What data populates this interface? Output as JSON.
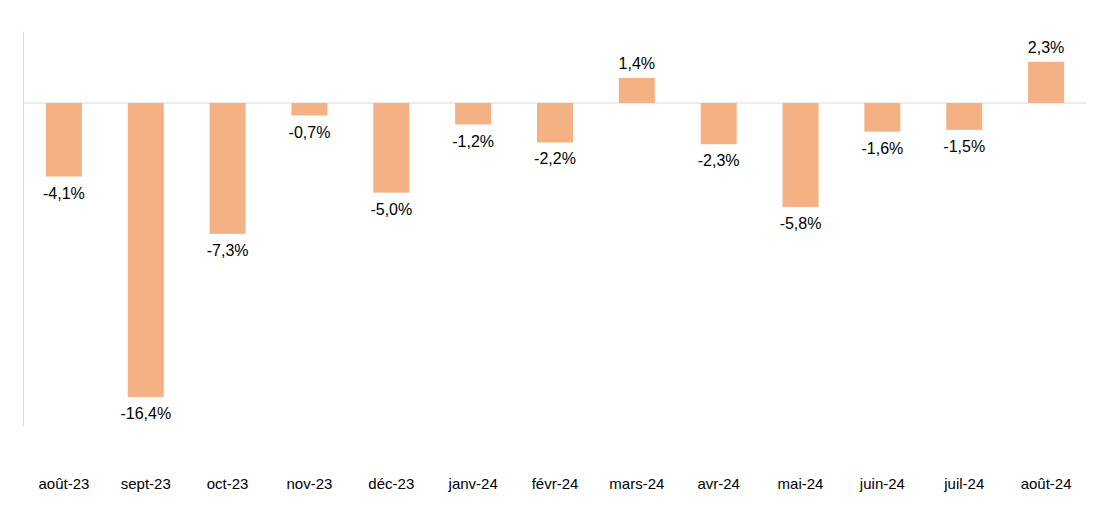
{
  "chart_data": {
    "type": "bar",
    "categories": [
      "août-23",
      "sept-23",
      "oct-23",
      "nov-23",
      "déc-23",
      "janv-24",
      "févr-24",
      "mars-24",
      "avr-24",
      "mai-24",
      "juin-24",
      "juil-24",
      "août-24"
    ],
    "values": [
      -4.1,
      -16.4,
      -7.3,
      -0.7,
      -5.0,
      -1.2,
      -2.2,
      1.4,
      -2.3,
      -5.8,
      -1.6,
      -1.5,
      2.3
    ],
    "value_labels": [
      "-4,1%",
      "-16,4%",
      "-7,3%",
      "-0,7%",
      "-5,0%",
      "-1,2%",
      "-2,2%",
      "1,4%",
      "-2,3%",
      "-5,8%",
      "-1,6%",
      "-1,5%",
      "2,3%"
    ],
    "color": "#f4b183",
    "ylim": [
      -18,
      4
    ],
    "yticks": [
      0
    ],
    "grid": true,
    "data_labels": true,
    "tick_labels": "x"
  }
}
